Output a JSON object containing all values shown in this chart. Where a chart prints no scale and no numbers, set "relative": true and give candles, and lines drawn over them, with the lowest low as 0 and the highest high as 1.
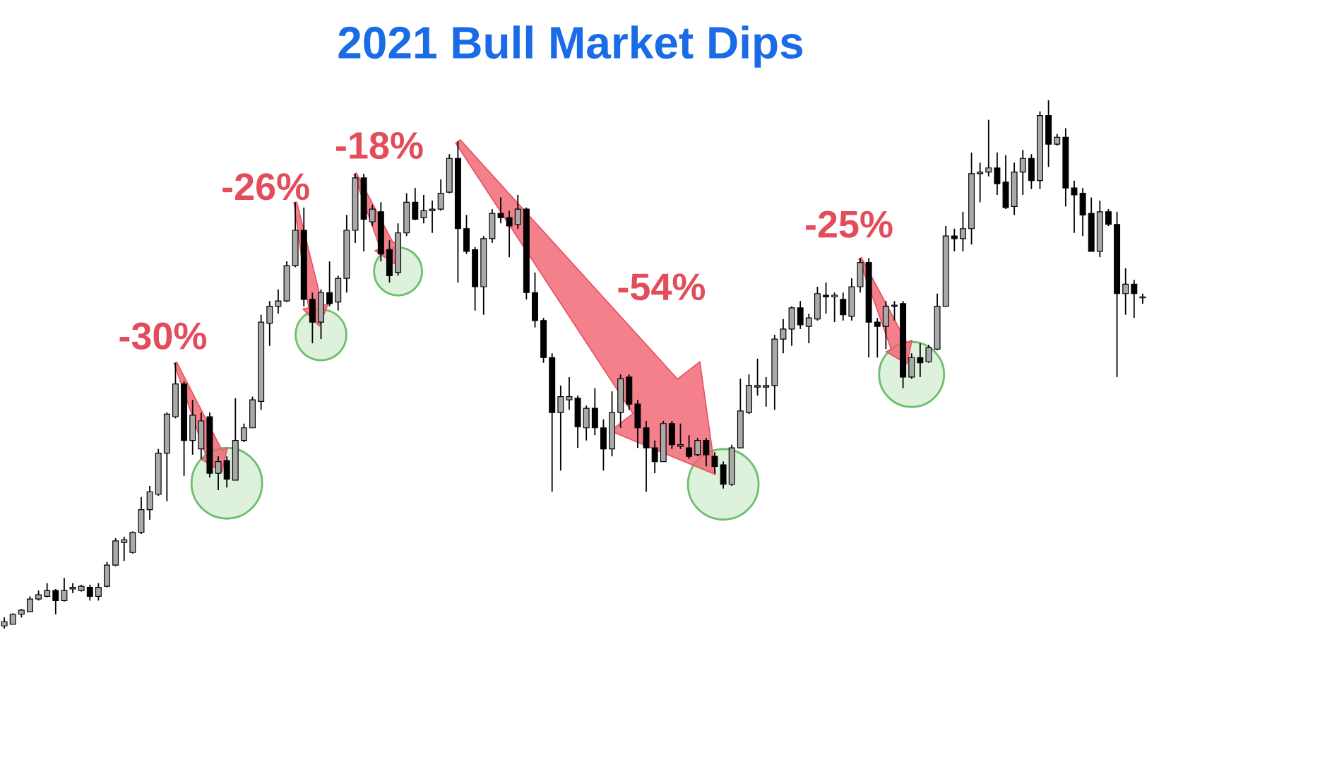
{
  "chart_data": {
    "type": "candlestick",
    "title": "2021 Bull Market Dips",
    "relative": true,
    "annotations": [
      "-30%",
      "-26%",
      "-18%",
      "-54%",
      "-25%"
    ],
    "categories": [
      null,
      null,
      null,
      null,
      null,
      null,
      null,
      null,
      null,
      null,
      null,
      null,
      null,
      null,
      null,
      null,
      null,
      null,
      null,
      null,
      null,
      null,
      null,
      null,
      null,
      null,
      null,
      null,
      null,
      null,
      null,
      null,
      null,
      null,
      null,
      null,
      null,
      null,
      null,
      null,
      null,
      null,
      null,
      null,
      null,
      null,
      null,
      null,
      null,
      null,
      null,
      null,
      null,
      null,
      null,
      null,
      null,
      null,
      null,
      null,
      null,
      null,
      null,
      null,
      null,
      null,
      null,
      null,
      null,
      null,
      null,
      null,
      null,
      null,
      null,
      null,
      null,
      null,
      null,
      null,
      null,
      null,
      null,
      null,
      null,
      null,
      null,
      null,
      null,
      null,
      null,
      null,
      null,
      null,
      null,
      null,
      null,
      null,
      null,
      null,
      null,
      null,
      null,
      null,
      null,
      null,
      null,
      null,
      null,
      null,
      null,
      null,
      null,
      null,
      null,
      null,
      null,
      null,
      null,
      null,
      null,
      null,
      null,
      null,
      null,
      null,
      null,
      null,
      null,
      null,
      null,
      null,
      null,
      null
    ],
    "ohlc": [
      [
        0.005,
        0.021,
        0,
        0.013
      ],
      [
        0.008,
        0.029,
        0.008,
        0.027
      ],
      [
        0.027,
        0.037,
        0.021,
        0.035
      ],
      [
        0.032,
        0.061,
        0.032,
        0.056
      ],
      [
        0.056,
        0.072,
        0.053,
        0.064
      ],
      [
        0.061,
        0.086,
        0.059,
        0.072
      ],
      [
        0.072,
        0.075,
        0.027,
        0.053
      ],
      [
        0.053,
        0.096,
        0.051,
        0.072
      ],
      [
        0.075,
        0.086,
        0.067,
        0.078
      ],
      [
        0.072,
        0.083,
        0.07,
        0.08
      ],
      [
        0.078,
        0.083,
        0.053,
        0.061
      ],
      [
        0.061,
        0.086,
        0.053,
        0.078
      ],
      [
        0.08,
        0.126,
        0.078,
        0.12
      ],
      [
        0.12,
        0.171,
        0.118,
        0.166
      ],
      [
        0.163,
        0.174,
        0.128,
        0.168
      ],
      [
        0.144,
        0.184,
        0.142,
        0.182
      ],
      [
        0.182,
        0.249,
        0.179,
        0.225
      ],
      [
        0.225,
        0.27,
        0.206,
        0.259
      ],
      [
        0.254,
        0.34,
        0.251,
        0.332
      ],
      [
        0.332,
        0.409,
        0.241,
        0.406
      ],
      [
        0.401,
        0.503,
        0.398,
        0.463
      ],
      [
        0.463,
        0.468,
        0.289,
        0.356
      ],
      [
        0.356,
        0.433,
        0.329,
        0.404
      ],
      [
        0.34,
        0.409,
        0.321,
        0.393
      ],
      [
        0.401,
        0.409,
        0.286,
        0.294
      ],
      [
        0.294,
        0.326,
        0.262,
        0.316
      ],
      [
        0.318,
        0.326,
        0.267,
        0.283
      ],
      [
        0.281,
        0.436,
        0.281,
        0.356
      ],
      [
        0.356,
        0.388,
        0.353,
        0.38
      ],
      [
        0.38,
        0.439,
        0.38,
        0.433
      ],
      [
        0.43,
        0.594,
        0.414,
        0.58
      ],
      [
        0.578,
        0.62,
        0.535,
        0.61
      ],
      [
        0.61,
        0.642,
        0.596,
        0.62
      ],
      [
        0.62,
        0.695,
        0.618,
        0.687
      ],
      [
        0.687,
        0.807,
        0.684,
        0.754
      ],
      [
        0.754,
        0.797,
        0.61,
        0.623
      ],
      [
        0.623,
        0.636,
        0.54,
        0.58
      ],
      [
        0.58,
        0.642,
        0.548,
        0.636
      ],
      [
        0.636,
        0.695,
        0.61,
        0.615
      ],
      [
        0.618,
        0.668,
        0.602,
        0.663
      ],
      [
        0.663,
        0.783,
        0.636,
        0.754
      ],
      [
        0.754,
        0.861,
        0.73,
        0.853
      ],
      [
        0.853,
        0.861,
        0.714,
        0.775
      ],
      [
        0.77,
        0.802,
        0.762,
        0.794
      ],
      [
        0.789,
        0.807,
        0.695,
        0.709
      ],
      [
        0.717,
        0.735,
        0.655,
        0.668
      ],
      [
        0.674,
        0.767,
        0.668,
        0.749
      ],
      [
        0.749,
        0.824,
        0.743,
        0.807
      ],
      [
        0.807,
        0.834,
        0.773,
        0.775
      ],
      [
        0.778,
        0.821,
        0.767,
        0.791
      ],
      [
        0.791,
        0.81,
        0.749,
        0.794
      ],
      [
        0.794,
        0.85,
        0.791,
        0.824
      ],
      [
        0.826,
        0.898,
        0.824,
        0.89
      ],
      [
        0.89,
        0.922,
        0.655,
        0.757
      ],
      [
        0.757,
        0.783,
        0.709,
        0.714
      ],
      [
        0.717,
        0.722,
        0.602,
        0.647
      ],
      [
        0.647,
        0.743,
        0.594,
        0.738
      ],
      [
        0.738,
        0.794,
        0.73,
        0.786
      ],
      [
        0.786,
        0.816,
        0.767,
        0.778
      ],
      [
        0.778,
        0.791,
        0.703,
        0.762
      ],
      [
        0.765,
        0.821,
        0.757,
        0.794
      ],
      [
        0.794,
        0.797,
        0.623,
        0.636
      ],
      [
        0.636,
        0.674,
        0.57,
        0.583
      ],
      [
        0.583,
        0.588,
        0.503,
        0.513
      ],
      [
        0.513,
        0.521,
        0.259,
        0.409
      ],
      [
        0.409,
        0.46,
        0.299,
        0.439
      ],
      [
        0.433,
        0.476,
        0.414,
        0.439
      ],
      [
        0.436,
        0.441,
        0.342,
        0.382
      ],
      [
        0.38,
        0.422,
        0.356,
        0.417
      ],
      [
        0.417,
        0.455,
        0.366,
        0.38
      ],
      [
        0.38,
        0.396,
        0.299,
        0.34
      ],
      [
        0.34,
        0.449,
        0.326,
        0.409
      ],
      [
        0.409,
        0.481,
        0.38,
        0.473
      ],
      [
        0.476,
        0.481,
        0.414,
        0.425
      ],
      [
        0.425,
        0.433,
        0.342,
        0.38
      ],
      [
        0.38,
        0.393,
        0.259,
        0.342
      ],
      [
        0.342,
        0.356,
        0.294,
        0.316
      ],
      [
        0.316,
        0.393,
        0.316,
        0.388
      ],
      [
        0.388,
        0.393,
        0.34,
        0.348
      ],
      [
        0.345,
        0.388,
        0.34,
        0.348
      ],
      [
        0.342,
        0.366,
        0.321,
        0.326
      ],
      [
        0.329,
        0.361,
        0.326,
        0.356
      ],
      [
        0.356,
        0.361,
        0.307,
        0.329
      ],
      [
        0.326,
        0.334,
        0.294,
        0.307
      ],
      [
        0.31,
        0.316,
        0.265,
        0.273
      ],
      [
        0.273,
        0.348,
        0.27,
        0.342
      ],
      [
        0.342,
        0.473,
        0.342,
        0.412
      ],
      [
        0.409,
        0.481,
        0.406,
        0.46
      ],
      [
        0.457,
        0.511,
        0.441,
        0.46
      ],
      [
        0.457,
        0.476,
        0.42,
        0.46
      ],
      [
        0.46,
        0.556,
        0.414,
        0.548
      ],
      [
        0.548,
        0.586,
        0.521,
        0.567
      ],
      [
        0.567,
        0.61,
        0.535,
        0.607
      ],
      [
        0.607,
        0.62,
        0.567,
        0.575
      ],
      [
        0.572,
        0.596,
        0.54,
        0.588
      ],
      [
        0.586,
        0.647,
        0.583,
        0.634
      ],
      [
        0.631,
        0.655,
        0.596,
        0.628
      ],
      [
        0.628,
        0.636,
        0.58,
        0.631
      ],
      [
        0.623,
        0.636,
        0.583,
        0.594
      ],
      [
        0.591,
        0.663,
        0.583,
        0.647
      ],
      [
        0.647,
        0.701,
        0.636,
        0.693
      ],
      [
        0.693,
        0.701,
        0.513,
        0.58
      ],
      [
        0.58,
        0.588,
        0.513,
        0.572
      ],
      [
        0.572,
        0.62,
        0.529,
        0.61
      ],
      [
        0.61,
        0.62,
        0.583,
        0.612
      ],
      [
        0.615,
        0.62,
        0.455,
        0.476
      ],
      [
        0.476,
        0.521,
        0.473,
        0.513
      ],
      [
        0.513,
        0.54,
        0.476,
        0.503
      ],
      [
        0.505,
        0.537,
        0.503,
        0.532
      ],
      [
        0.529,
        0.634,
        0.527,
        0.61
      ],
      [
        0.61,
        0.762,
        0.61,
        0.743
      ],
      [
        0.743,
        0.757,
        0.714,
        0.738
      ],
      [
        0.738,
        0.789,
        0.714,
        0.757
      ],
      [
        0.757,
        0.901,
        0.727,
        0.861
      ],
      [
        0.861,
        0.882,
        0.807,
        0.864
      ],
      [
        0.864,
        0.963,
        0.856,
        0.872
      ],
      [
        0.872,
        0.901,
        0.821,
        0.842
      ],
      [
        0.845,
        0.896,
        0.794,
        0.797
      ],
      [
        0.799,
        0.882,
        0.783,
        0.864
      ],
      [
        0.864,
        0.906,
        0.821,
        0.89
      ],
      [
        0.89,
        0.898,
        0.832,
        0.848
      ],
      [
        0.848,
        0.979,
        0.832,
        0.971
      ],
      [
        0.971,
        1,
        0.874,
        0.917
      ],
      [
        0.917,
        0.936,
        0.914,
        0.93
      ],
      [
        0.93,
        0.947,
        0.799,
        0.834
      ],
      [
        0.834,
        0.848,
        0.749,
        0.821
      ],
      [
        0.824,
        0.834,
        0.743,
        0.783
      ],
      [
        0.786,
        0.816,
        0.714,
        0.714
      ],
      [
        0.714,
        0.81,
        0.703,
        0.789
      ],
      [
        0.789,
        0.794,
        0.762,
        0.765
      ],
      [
        0.765,
        0.789,
        0.476,
        0.634
      ],
      [
        0.634,
        0.682,
        0.594,
        0.652
      ],
      [
        0.652,
        0.66,
        0.588,
        0.634
      ],
      [
        0.626,
        0.634,
        0.615,
        0.628
      ]
    ]
  }
}
